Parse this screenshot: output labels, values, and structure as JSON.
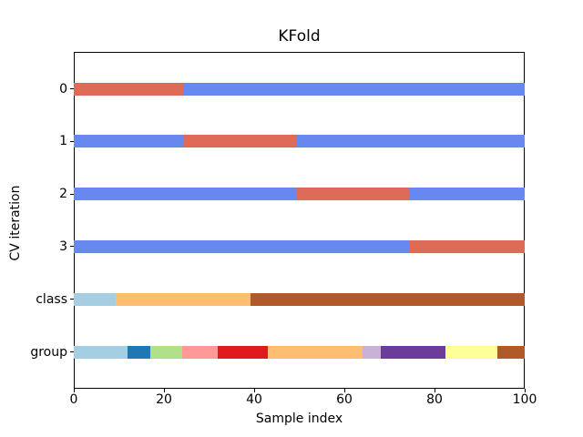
{
  "figure": {
    "background": "#ffffff",
    "spine_color": "#000000"
  },
  "chart_data": {
    "type": "bar",
    "subtype": "horizontal-stacked-categorical",
    "title": "KFold",
    "xlabel": "Sample index",
    "ylabel": "CV iteration",
    "xlim": [
      0,
      100
    ],
    "x_ticks": [
      0,
      20,
      40,
      60,
      80,
      100
    ],
    "y_tick_labels": [
      "0",
      "1",
      "2",
      "3",
      "class",
      "group"
    ],
    "grid": false,
    "legend": "none",
    "colors": {
      "train": "#6788ee",
      "test": "#dd6b58",
      "paired_0": "#a6cee3",
      "paired_1": "#1f78b4",
      "paired_2": "#b2df8a",
      "paired_4": "#fb9a99",
      "paired_5": "#e31a1c",
      "paired_6": "#fdbf6f",
      "paired_8": "#cab2d6",
      "paired_9": "#6a3d9a",
      "paired_10": "#ffff99",
      "paired_11": "#b15928"
    },
    "rows": [
      {
        "label": "0",
        "segments": [
          {
            "from": 0,
            "to": 24.3,
            "color": "#dd6b58",
            "role": "test"
          },
          {
            "from": 24.3,
            "to": 100,
            "color": "#6788ee",
            "role": "train"
          }
        ]
      },
      {
        "label": "1",
        "segments": [
          {
            "from": 0,
            "to": 24.3,
            "color": "#6788ee",
            "role": "train"
          },
          {
            "from": 24.3,
            "to": 49.3,
            "color": "#dd6b58",
            "role": "test"
          },
          {
            "from": 49.3,
            "to": 100,
            "color": "#6788ee",
            "role": "train"
          }
        ]
      },
      {
        "label": "2",
        "segments": [
          {
            "from": 0,
            "to": 49.3,
            "color": "#6788ee",
            "role": "train"
          },
          {
            "from": 49.3,
            "to": 74.3,
            "color": "#dd6b58",
            "role": "test"
          },
          {
            "from": 74.3,
            "to": 100,
            "color": "#6788ee",
            "role": "train"
          }
        ]
      },
      {
        "label": "3",
        "segments": [
          {
            "from": 0,
            "to": 74.3,
            "color": "#6788ee",
            "role": "train"
          },
          {
            "from": 74.3,
            "to": 100,
            "color": "#dd6b58",
            "role": "test"
          }
        ]
      },
      {
        "label": "class",
        "segments": [
          {
            "from": 0,
            "to": 9.3,
            "color": "#a6cee3",
            "role": "class-0"
          },
          {
            "from": 9.3,
            "to": 39.2,
            "color": "#fdbf6f",
            "role": "class-1"
          },
          {
            "from": 39.2,
            "to": 100,
            "color": "#b15928",
            "role": "class-2"
          }
        ]
      },
      {
        "label": "group",
        "segments": [
          {
            "from": 0,
            "to": 12,
            "color": "#a6cee3",
            "role": "group-0"
          },
          {
            "from": 12,
            "to": 17,
            "color": "#1f78b4",
            "role": "group-1"
          },
          {
            "from": 17,
            "to": 24,
            "color": "#b2df8a",
            "role": "group-2"
          },
          {
            "from": 24,
            "to": 32,
            "color": "#fb9a99",
            "role": "group-3"
          },
          {
            "from": 32,
            "to": 43,
            "color": "#e31a1c",
            "role": "group-4"
          },
          {
            "from": 43,
            "to": 64,
            "color": "#fdbf6f",
            "role": "group-5"
          },
          {
            "from": 64,
            "to": 68,
            "color": "#cab2d6",
            "role": "group-6"
          },
          {
            "from": 68,
            "to": 82.5,
            "color": "#6a3d9a",
            "role": "group-7"
          },
          {
            "from": 82.5,
            "to": 94,
            "color": "#ffff99",
            "role": "group-8"
          },
          {
            "from": 94,
            "to": 100,
            "color": "#b15928",
            "role": "group-9"
          }
        ]
      }
    ]
  }
}
